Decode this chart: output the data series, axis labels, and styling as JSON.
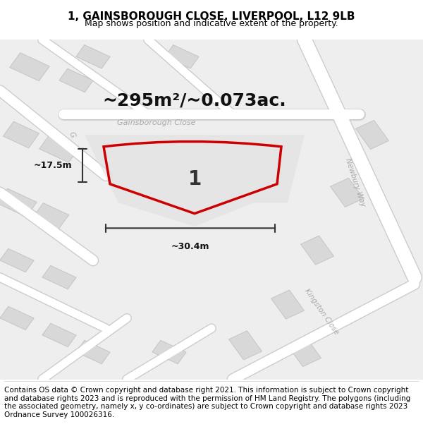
{
  "title": "1, GAINSBOROUGH CLOSE, LIVERPOOL, L12 9LB",
  "subtitle": "Map shows position and indicative extent of the property.",
  "area_text": "~295m²/~0.073ac.",
  "plot_number": "1",
  "dim_width": "~30.4m",
  "dim_height": "~17.5m",
  "footer": "Contains OS data © Crown copyright and database right 2021. This information is subject to Crown copyright and database rights 2023 and is reproduced with the permission of HM Land Registry. The polygons (including the associated geometry, namely x, y co-ordinates) are subject to Crown copyright and database rights 2023 Ordnance Survey 100026316.",
  "bg_color": "#f5f5f5",
  "map_bg": "#e8e8e8",
  "road_color": "#ffffff",
  "road_stroke": "#d0d0d0",
  "plot_color": "#cc0000",
  "plot_fill": "none",
  "street_label_color": "#aaaaaa",
  "street_label_Gainsborough": "Gainsborough Close",
  "street_label_Newbury": "Newbury Way",
  "street_label_Kingston": "Kingston Close",
  "title_fontsize": 11,
  "subtitle_fontsize": 9,
  "area_fontsize": 18,
  "footer_fontsize": 7.5
}
